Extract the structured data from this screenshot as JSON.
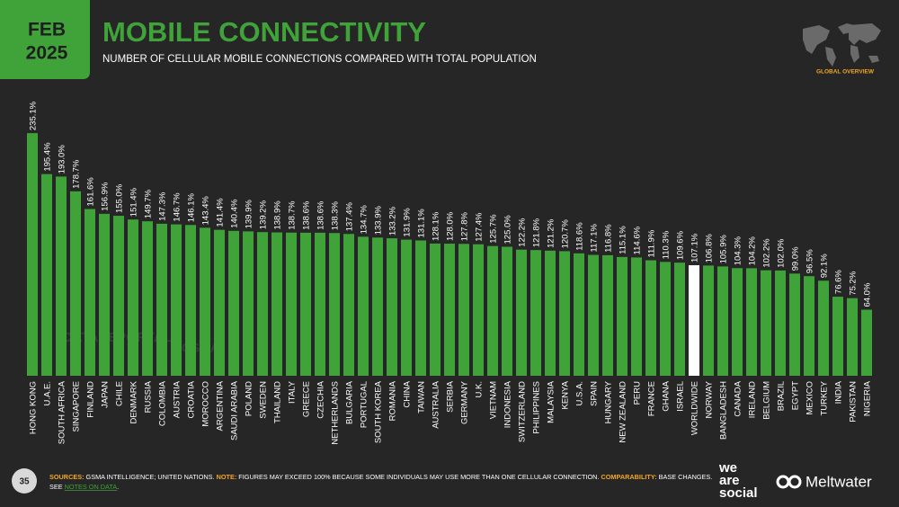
{
  "header": {
    "date_line1": "FEB",
    "date_line2": "2025",
    "title": "MOBILE CONNECTIVITY",
    "subtitle": "NUMBER OF CELLULAR MOBILE CONNECTIONS COMPARED WITH TOTAL POPULATION",
    "badge": "GLOBAL OVERVIEW"
  },
  "watermarks": [
    "DATAREPORTAL",
    "GSMA"
  ],
  "chart_data": {
    "type": "bar",
    "color": "#3fa33a",
    "highlight": {
      "category": "WORLDWIDE",
      "color": "#ffffff"
    },
    "categories": [
      "HONG KONG",
      "U.A.E.",
      "SOUTH AFRICA",
      "SINGAPORE",
      "FINLAND",
      "JAPAN",
      "CHILE",
      "DENMARK",
      "RUSSIA",
      "COLOMBIA",
      "AUSTRIA",
      "CROATIA",
      "MOROCCO",
      "ARGENTINA",
      "SAUDI ARABIA",
      "POLAND",
      "SWEDEN",
      "THAILAND",
      "ITALY",
      "GREECE",
      "CZECHIA",
      "NETHERLANDS",
      "BULGARIA",
      "PORTUGAL",
      "SOUTH KOREA",
      "ROMANIA",
      "CHINA",
      "TAIWAN",
      "AUSTRALIA",
      "SERBIA",
      "GERMANY",
      "U.K.",
      "VIETNAM",
      "INDONESIA",
      "SWITZERLAND",
      "PHILIPPINES",
      "MALAYSIA",
      "KENYA",
      "U.S.A.",
      "SPAIN",
      "HUNGARY",
      "NEW ZEALAND",
      "PERU",
      "FRANCE",
      "GHANA",
      "ISRAEL",
      "WORLDWIDE",
      "NORWAY",
      "BANGLADESH",
      "CANADA",
      "IRELAND",
      "BELGIUM",
      "BRAZIL",
      "EGYPT",
      "MEXICO",
      "TURKEY",
      "INDIA",
      "PAKISTAN",
      "NIGERIA"
    ],
    "values": [
      235.1,
      195.4,
      193.0,
      178.7,
      161.6,
      156.9,
      155.0,
      151.4,
      149.7,
      147.3,
      146.7,
      146.1,
      143.4,
      141.4,
      140.4,
      139.9,
      139.2,
      138.9,
      138.7,
      138.6,
      138.6,
      138.3,
      137.4,
      134.7,
      133.9,
      133.2,
      131.9,
      131.1,
      128.1,
      128.0,
      127.8,
      127.4,
      125.7,
      125.0,
      122.2,
      121.8,
      121.2,
      120.7,
      118.6,
      117.1,
      116.8,
      115.1,
      114.6,
      111.9,
      110.3,
      109.6,
      107.1,
      106.8,
      105.9,
      104.3,
      104.2,
      102.2,
      102.0,
      99.0,
      96.5,
      92.1,
      76.6,
      75.2,
      64.0
    ],
    "value_labels": [
      "235.1%",
      "195.4%",
      "193.0%",
      "178.7%",
      "161.6%",
      "156.9%",
      "155.0%",
      "151.4%",
      "149.7%",
      "147.3%",
      "146.7%",
      "146.1%",
      "143.4%",
      "141.4%",
      "140.4%",
      "139.9%",
      "139.2%",
      "138.9%",
      "138.7%",
      "138.6%",
      "138.6%",
      "138.3%",
      "137.4%",
      "134.7%",
      "133.9%",
      "133.2%",
      "131.9%",
      "131.1%",
      "128.1%",
      "128.0%",
      "127.8%",
      "127.4%",
      "125.7%",
      "125.0%",
      "122.2%",
      "121.8%",
      "121.2%",
      "120.7%",
      "118.6%",
      "117.1%",
      "116.8%",
      "115.1%",
      "114.6%",
      "111.9%",
      "110.3%",
      "109.6%",
      "107.1%",
      "106.8%",
      "105.9%",
      "104.3%",
      "104.2%",
      "102.2%",
      "102.0%",
      "99.0%",
      "96.5%",
      "92.1%",
      "76.6%",
      "75.2%",
      "64.0%"
    ]
  },
  "footer": {
    "page": "35",
    "sources_label": "SOURCES:",
    "sources": " GSMA INTELLIGENCE; UNITED NATIONS. ",
    "note_label": "NOTE:",
    "note": " FIGURES MAY EXCEED 100% BECAUSE SOME INDIVIDUALS MAY USE MORE THAN ONE CELLULAR CONNECTION. ",
    "comparability_label": "COMPARABILITY:",
    "comparability": " BASE CHANGES.",
    "see": "SEE ",
    "link": "NOTES ON DATA",
    "see_end": ".",
    "logo1": [
      "we",
      "are",
      "social"
    ],
    "logo2": "Meltwater"
  }
}
